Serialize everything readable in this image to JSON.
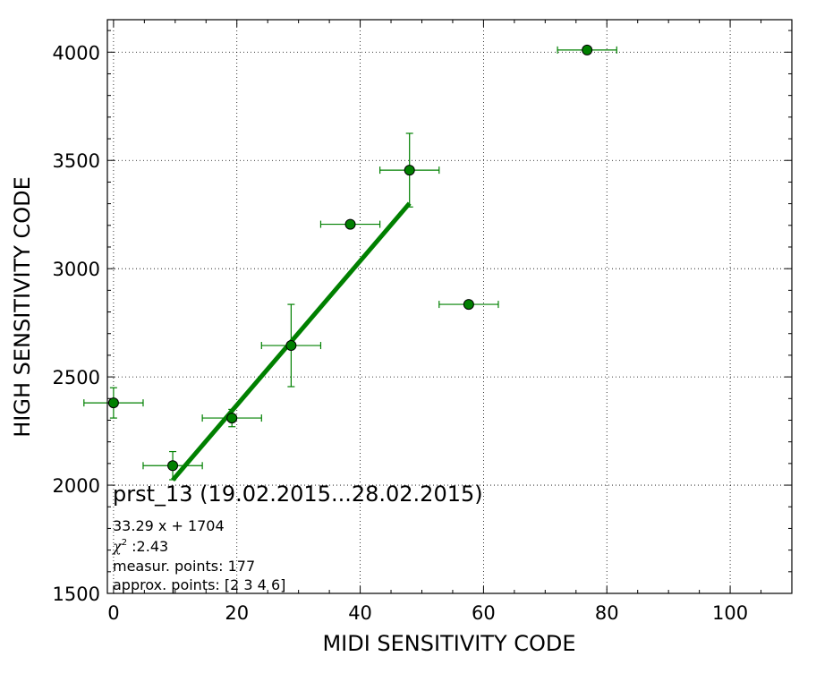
{
  "chart_data": {
    "type": "scatter",
    "xlabel": "MIDI SENSITIVITY CODE",
    "ylabel": "HIGH SENSITIVITY CODE",
    "xlim": [
      -1,
      110
    ],
    "ylim": [
      1500,
      4150
    ],
    "x_ticks": [
      0,
      20,
      40,
      60,
      80,
      100
    ],
    "y_ticks": [
      1500,
      2000,
      2500,
      3000,
      3500,
      4000
    ],
    "x_tick_labels": [
      "0",
      "20",
      "40",
      "60",
      "80",
      "100"
    ],
    "y_tick_labels": [
      "1500",
      "2000",
      "2500",
      "3000",
      "3500",
      "4000"
    ],
    "grid": true,
    "series": [
      {
        "marker": "circle",
        "color": "#008000",
        "points": [
          {
            "x": 0,
            "y": 2380,
            "xerr": 4.8,
            "yerr": 70
          },
          {
            "x": 9.6,
            "y": 2090,
            "xerr": 4.8,
            "yerr": 65
          },
          {
            "x": 19.2,
            "y": 2310,
            "xerr": 4.8,
            "yerr": 40
          },
          {
            "x": 28.8,
            "y": 2645,
            "xerr": 4.8,
            "yerr": 190
          },
          {
            "x": 38.4,
            "y": 3205,
            "xerr": 4.8,
            "yerr": 0
          },
          {
            "x": 48,
            "y": 3455,
            "xerr": 4.8,
            "yerr": 170
          },
          {
            "x": 57.6,
            "y": 2835,
            "xerr": 4.8,
            "yerr": 0
          },
          {
            "x": 76.8,
            "y": 4010,
            "xerr": 4.8,
            "yerr": 0
          }
        ]
      }
    ],
    "fit_line": {
      "color": "#008000",
      "slope": 33.29,
      "intercept": 1704,
      "x_range": [
        9.6,
        48
      ]
    },
    "annotations": {
      "title": "prst_13 (19.02.2015...28.02.2015)",
      "equation": "33.29 x + 1704",
      "chi_symbol": "χ",
      "chi_exponent": "2",
      "chi_value": " :2.43",
      "measur_points": "measur. points: 177",
      "approx_points": "approx. points: [2 3 4 6]"
    }
  }
}
